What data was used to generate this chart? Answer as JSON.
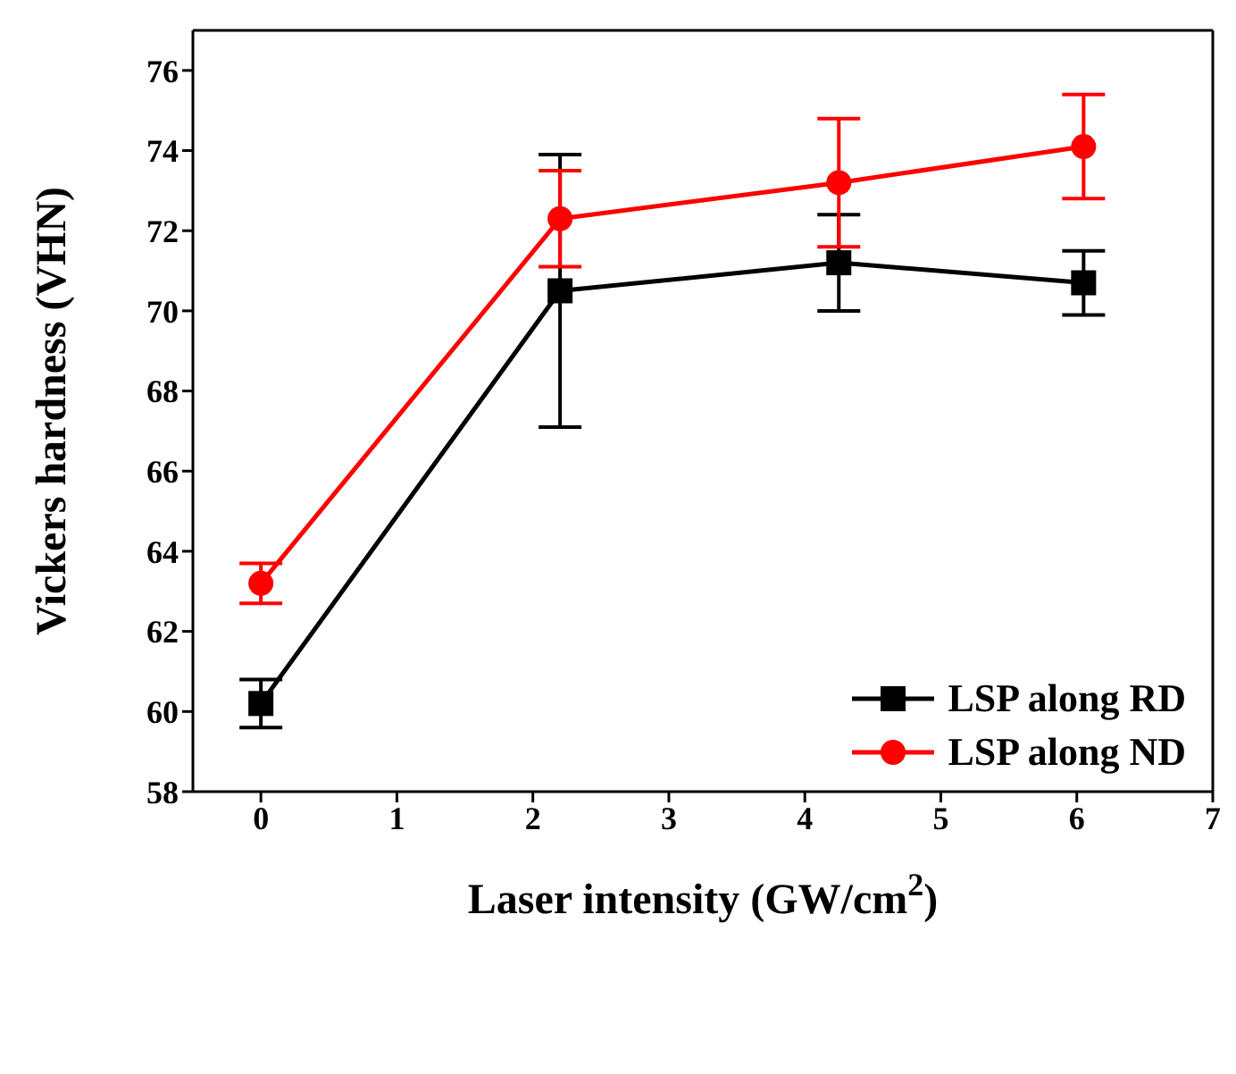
{
  "chart_data": {
    "type": "line",
    "xlabel": "Laser intensity (GW/cm$^{2}$)",
    "ylabel": "Vickers hardness (VHN)",
    "x": [
      0,
      2.2,
      4.25,
      6.05
    ],
    "series": [
      {
        "name": "LSP along RD",
        "color": "#000000",
        "marker": "square",
        "values": [
          60.2,
          70.5,
          71.2,
          70.7
        ],
        "errors": [
          [
            59.6,
            60.8
          ],
          [
            67.1,
            73.9
          ],
          [
            70.0,
            72.4
          ],
          [
            69.9,
            71.5
          ]
        ]
      },
      {
        "name": "LSP along ND",
        "color": "#ff0000",
        "marker": "circle",
        "values": [
          63.2,
          72.3,
          73.2,
          74.1
        ],
        "errors": [
          [
            62.7,
            63.7
          ],
          [
            71.1,
            73.5
          ],
          [
            71.6,
            74.8
          ],
          [
            72.8,
            75.4
          ]
        ]
      }
    ],
    "xlim": [
      -0.5,
      7
    ],
    "xticks": [
      0,
      1,
      2,
      3,
      4,
      5,
      6,
      7
    ],
    "ylim": [
      58,
      77
    ],
    "yticks": [
      58,
      60,
      62,
      64,
      66,
      68,
      70,
      72,
      74,
      76
    ],
    "grid": false,
    "legend": "right",
    "line_style": "solid"
  }
}
